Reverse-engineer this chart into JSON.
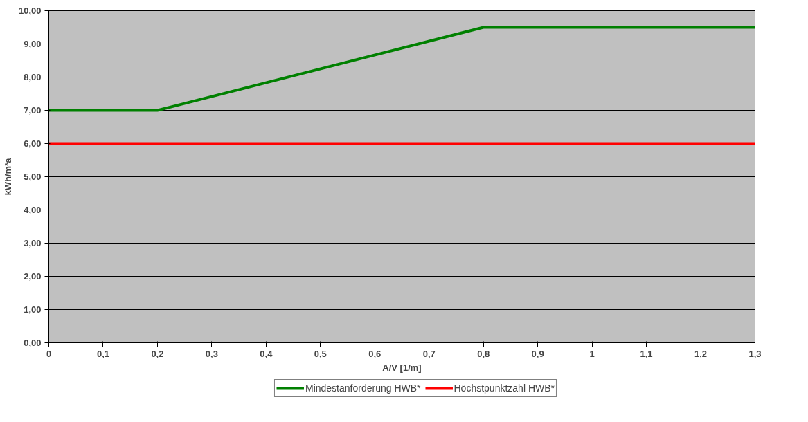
{
  "chart_data": {
    "type": "line",
    "xlabel": "A/V [1/m]",
    "ylabel": "kWh/m³a",
    "xlim": [
      0,
      1.3
    ],
    "xticks": [
      0,
      {
        "value": 0.1,
        "label": "0,1"
      },
      {
        "value": 0.2,
        "label": "0,2"
      },
      {
        "value": 0.3,
        "label": "0,3"
      },
      {
        "value": 0.4,
        "label": "0,4"
      },
      {
        "value": 0.5,
        "label": "0,5"
      },
      {
        "value": 0.6,
        "label": "0,6"
      },
      {
        "value": 0.7,
        "label": "0,7"
      },
      {
        "value": 0.8,
        "label": "0,8"
      },
      {
        "value": 0.9,
        "label": "0,9"
      },
      1,
      {
        "value": 1.1,
        "label": "1,1"
      },
      {
        "value": 1.2,
        "label": "1,2"
      },
      {
        "value": 1.3,
        "label": "1,3"
      }
    ],
    "ylim": [
      0,
      10
    ],
    "yticks": [
      {
        "value": 0,
        "label": "0,00"
      },
      {
        "value": 1,
        "label": "1,00"
      },
      {
        "value": 2,
        "label": "2,00"
      },
      {
        "value": 3,
        "label": "3,00"
      },
      {
        "value": 4,
        "label": "4,00"
      },
      {
        "value": 5,
        "label": "5,00"
      },
      {
        "value": 6,
        "label": "6,00"
      },
      {
        "value": 7,
        "label": "7,00"
      },
      {
        "value": 8,
        "label": "8,00"
      },
      {
        "value": 9,
        "label": "9,00"
      },
      {
        "value": 10,
        "label": "10,00"
      }
    ],
    "grid": "y",
    "legend": "bottom",
    "marker": "none",
    "line_style": "solid",
    "series": [
      {
        "name": "Mindestanforderung HWB*",
        "color": "#008000",
        "x": [
          0,
          0.2,
          0.8,
          1.3
        ],
        "values": [
          7,
          7,
          9.5,
          9.5
        ]
      },
      {
        "name": "Höchstpunktzahl HWB*",
        "color": "#ff0000",
        "x": [
          0,
          1.3
        ],
        "values": [
          6,
          6
        ]
      }
    ]
  }
}
